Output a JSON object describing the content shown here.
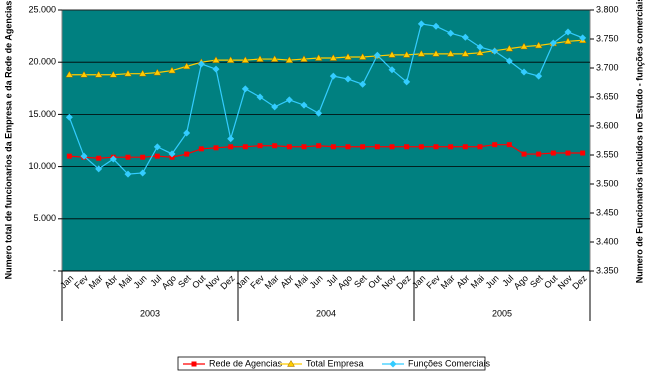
{
  "chart_data": {
    "type": "line",
    "y_label": "Numero total de funcionarios da Empresa e da Rede de Agencias",
    "y2_label": "Numero de Funcionarios incluidos no Estudo - funções comerciais",
    "categories": [
      "Jan",
      "Fev",
      "Mar",
      "Abr",
      "Mai",
      "Jun",
      "Jul",
      "Ago",
      "Set",
      "Out",
      "Nov",
      "Dez",
      "Jan",
      "Fev",
      "Mar",
      "Abr",
      "Mai",
      "Jun",
      "Jul",
      "Ago",
      "Set",
      "Out",
      "Nov",
      "Dez",
      "Jan",
      "Fev",
      "Mar",
      "Abr",
      "Mai",
      "Jun",
      "Jul",
      "Ago",
      "Set",
      "Out",
      "Nov",
      "Dez"
    ],
    "year_groups": [
      "2003",
      "2004",
      "2005"
    ],
    "ylim": [
      0,
      25000
    ],
    "yticks": [
      {
        "value": 0,
        "label": "-"
      },
      {
        "value": 5000,
        "label": "5.000"
      },
      {
        "value": 10000,
        "label": "10.000"
      },
      {
        "value": 15000,
        "label": "15.000"
      },
      {
        "value": 20000,
        "label": "20.000"
      },
      {
        "value": 25000,
        "label": "25.000"
      }
    ],
    "y2lim": [
      3.35,
      3.8
    ],
    "y2ticks": [
      {
        "value": 3.35,
        "label": "3.350"
      },
      {
        "value": 3.4,
        "label": "3.400"
      },
      {
        "value": 3.45,
        "label": "3.450"
      },
      {
        "value": 3.5,
        "label": "3.500"
      },
      {
        "value": 3.55,
        "label": "3.550"
      },
      {
        "value": 3.6,
        "label": "3.600"
      },
      {
        "value": 3.65,
        "label": "3.650"
      },
      {
        "value": 3.7,
        "label": "3.700"
      },
      {
        "value": 3.75,
        "label": "3.750"
      },
      {
        "value": 3.8,
        "label": "3.800"
      }
    ],
    "grid": true,
    "background": "#008080",
    "series": [
      {
        "name": "Rede de Agencias",
        "color": "#ff0000",
        "marker": "square",
        "values": [
          11000,
          10900,
          10800,
          10900,
          10900,
          10900,
          11000,
          10900,
          11200,
          11700,
          11800,
          11900,
          11900,
          12000,
          12000,
          11900,
          11900,
          12000,
          11900,
          11900,
          11900,
          11900,
          11900,
          11900,
          11900,
          11900,
          11900,
          11900,
          11900,
          12100,
          12100,
          11200,
          11200,
          11300,
          11300,
          11300
        ]
      },
      {
        "name": "Total Empresa",
        "color": "#ffcc00",
        "marker": "triangle",
        "values": [
          18800,
          18800,
          18800,
          18800,
          18900,
          18900,
          19000,
          19200,
          19600,
          20000,
          20200,
          20200,
          20200,
          20300,
          20300,
          20200,
          20300,
          20400,
          20400,
          20500,
          20500,
          20600,
          20700,
          20700,
          20800,
          20800,
          20800,
          20800,
          20900,
          21100,
          21300,
          21500,
          21600,
          21800,
          22000,
          22100
        ]
      },
      {
        "name": "Funções Comerciais",
        "color": "#33ccff",
        "marker": "diamond",
        "axis": "y2",
        "values": [
          3.615,
          3.548,
          3.526,
          3.543,
          3.517,
          3.519,
          3.564,
          3.552,
          3.588,
          3.707,
          3.698,
          3.578,
          3.664,
          3.65,
          3.633,
          3.645,
          3.636,
          3.622,
          3.686,
          3.681,
          3.672,
          3.722,
          3.697,
          3.676,
          3.776,
          3.772,
          3.76,
          3.753,
          3.736,
          3.729,
          3.712,
          3.693,
          3.686,
          3.743,
          3.762,
          3.752
        ]
      }
    ]
  }
}
